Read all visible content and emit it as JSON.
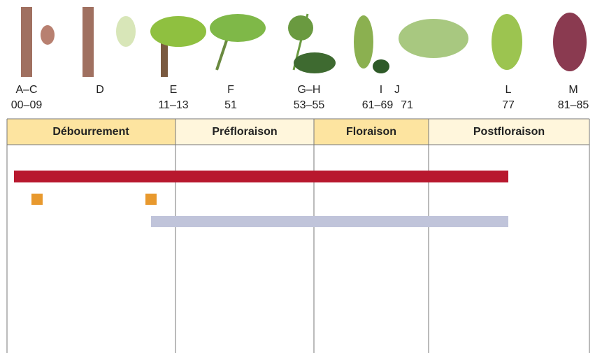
{
  "stages": [
    {
      "label": "A–C",
      "code": "00–09"
    },
    {
      "label": "D"
    },
    {
      "label": "E",
      "code": "11–13"
    },
    {
      "label": "F",
      "code": "51"
    },
    {
      "label": "G–H",
      "code": "53–55"
    },
    {
      "label": "I",
      "code": "61–69"
    },
    {
      "label": "J",
      "code": "71"
    },
    {
      "label": "L",
      "code": "77"
    },
    {
      "label": "M",
      "code": "81–85"
    }
  ],
  "phases": [
    "Débourrement",
    "Préfloraison",
    "Floraison",
    "Postfloraison"
  ]
}
